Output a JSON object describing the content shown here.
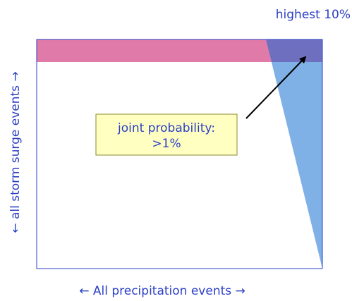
{
  "labels": {
    "top_right": "highest 10%",
    "y_axis": "← all storm surge events →",
    "x_axis": "← All precipitation events →",
    "callout_line1": "joint probability:",
    "callout_line2": ">1%"
  },
  "colors": {
    "text": "#2b3fc4",
    "frame": "#2b3fc4",
    "surge_band": "#e07aa9",
    "precip_band": "#7fb0e6",
    "overlap": "#6f6fbf",
    "callout_fill": "#ffffc2",
    "callout_border": "#8a8a2a",
    "arrow": "#000000"
  }
}
